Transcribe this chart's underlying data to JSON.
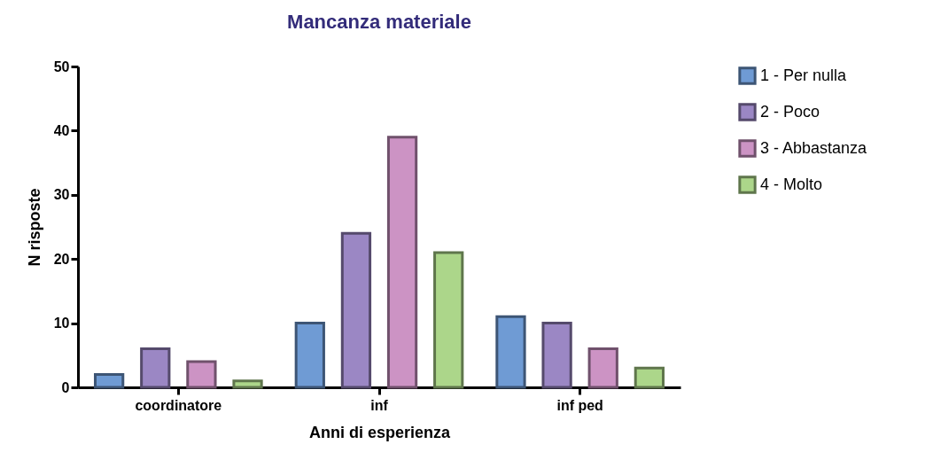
{
  "chart_data": {
    "type": "bar",
    "title": "Mancanza materiale",
    "xlabel": "Anni di esperienza",
    "ylabel": "N risposte",
    "categories": [
      "coordinatore",
      "inf",
      "inf ped"
    ],
    "series": [
      {
        "name": "1 - Per nulla",
        "color": "#6f9bd4",
        "values": [
          2,
          10,
          11
        ]
      },
      {
        "name": "2 - Poco",
        "color": "#9b87c4",
        "values": [
          6,
          24,
          10
        ]
      },
      {
        "name": "3 - Abbastanza",
        "color": "#cc93c4",
        "values": [
          4,
          39,
          6
        ]
      },
      {
        "name": "4 - Molto",
        "color": "#acd68a",
        "values": [
          1,
          21,
          3
        ]
      }
    ],
    "ylim": [
      0,
      50
    ],
    "yticks": [
      0,
      10,
      20,
      30,
      40,
      50
    ],
    "grid": false,
    "legend": "right"
  }
}
